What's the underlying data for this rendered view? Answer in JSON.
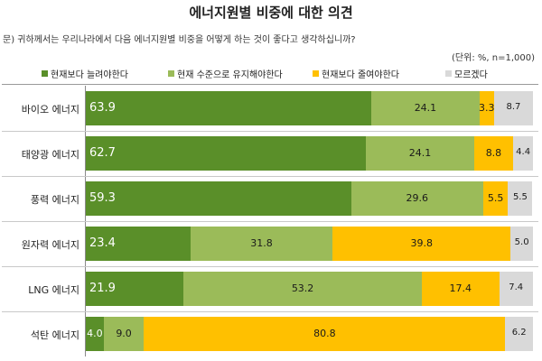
{
  "title": "에너지원별 비중에 대한 의견",
  "question": "문) 귀하께서는 우리나라에서 다음 에너지원별 비중을 어떻게 하는 것이 좋다고 생각하십니까?",
  "unit": "(단위: %,  n=1,000)",
  "chart_data": {
    "type": "bar",
    "orientation": "horizontal",
    "stacked": true,
    "categories": [
      "바이오 에너지",
      "태양광 에너지",
      "풍력 에너지",
      "원자력 에너지",
      "LNG 에너지",
      "석탄 에너지"
    ],
    "series": [
      {
        "name": "현재보다 늘려야한다",
        "color": "#5a8f29",
        "label_color": "#ffffff",
        "values": [
          63.9,
          62.7,
          59.3,
          23.4,
          21.9,
          4.0
        ],
        "labels": [
          "63.9",
          "62.7",
          "59.3",
          "23.4",
          "21.9",
          "4.0"
        ]
      },
      {
        "name": "현재 수준으로 유지해야한다",
        "color": "#9bbb59",
        "label_color": "#1a1a1a",
        "values": [
          24.1,
          24.1,
          29.6,
          31.8,
          53.2,
          9.0
        ],
        "labels": [
          "24.1",
          "24.1",
          "29.6",
          "31.8",
          "53.2",
          "9.0"
        ]
      },
      {
        "name": "현재보다 줄여야한다",
        "color": "#ffc000",
        "label_color": "#1a1a1a",
        "values": [
          3.3,
          8.8,
          5.5,
          39.8,
          17.4,
          80.8
        ],
        "labels": [
          "3.3",
          "8.8",
          "5.5",
          "39.8",
          "17.4",
          "80.8"
        ]
      },
      {
        "name": "모르겠다",
        "color": "#d9d9d9",
        "label_color": "#1a1a1a",
        "values": [
          8.7,
          4.4,
          5.5,
          5.0,
          7.4,
          6.2
        ],
        "labels": [
          "8.7",
          "4.4",
          "5.5",
          "5.0",
          "7.4",
          "6.2"
        ]
      }
    ],
    "xlim": [
      0,
      100
    ],
    "legend_position": "top",
    "grid": false
  }
}
